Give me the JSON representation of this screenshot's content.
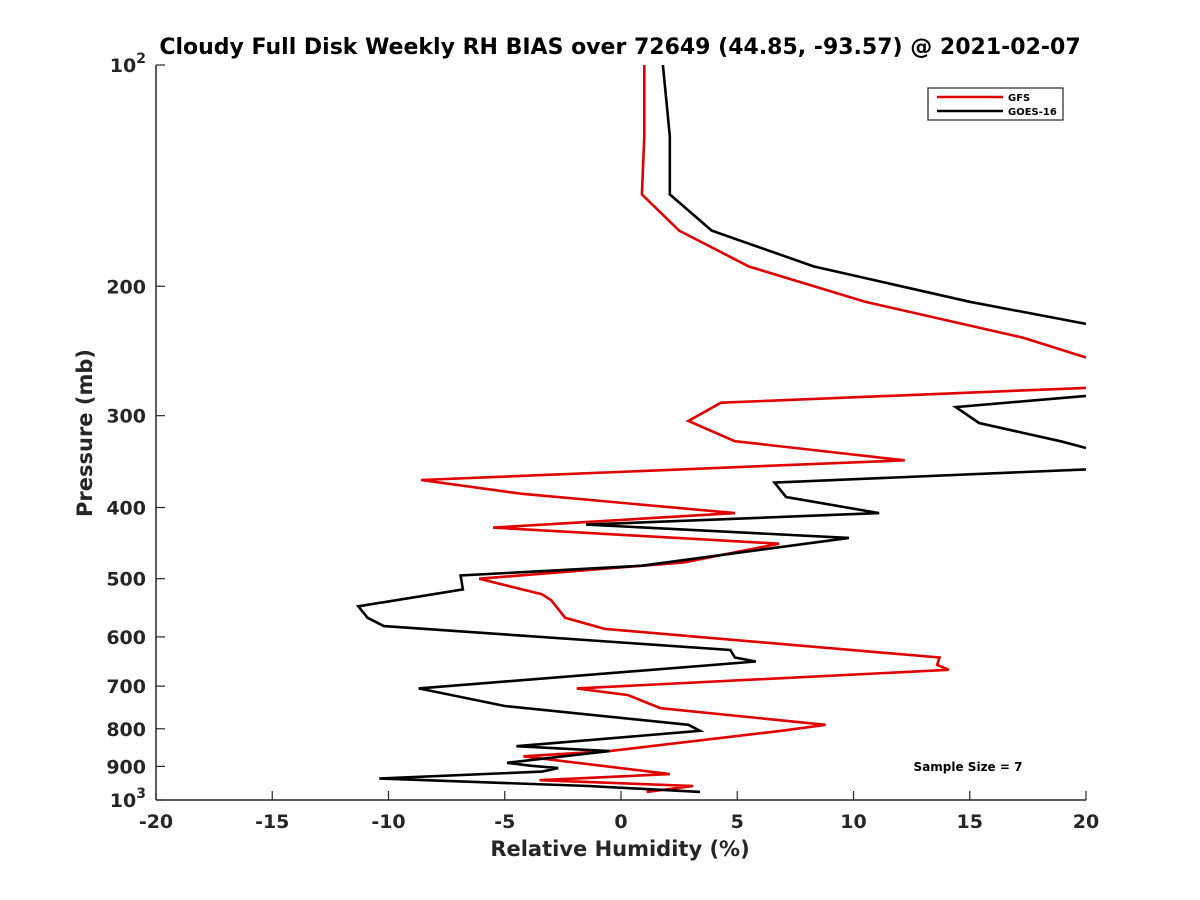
{
  "chart_data": {
    "type": "line",
    "title": "Cloudy Full Disk Weekly RH BIAS over 72649 (44.85, -93.57) @ 2021-02-07",
    "xlabel": "Relative Humidity (%)",
    "ylabel": "Pressure (mb)",
    "xlim": [
      -20,
      20
    ],
    "ylim": [
      100,
      1000
    ],
    "y_scale": "log",
    "y_reversed": true,
    "grid": false,
    "legend_position": "top-right",
    "x_ticks": [
      {
        "value": -20,
        "label": "-20"
      },
      {
        "value": -15,
        "label": "-15"
      },
      {
        "value": -10,
        "label": "-10"
      },
      {
        "value": -5,
        "label": "-5"
      },
      {
        "value": 0,
        "label": "0"
      },
      {
        "value": 5,
        "label": "5"
      },
      {
        "value": 10,
        "label": "10"
      },
      {
        "value": 15,
        "label": "15"
      },
      {
        "value": 20,
        "label": "20"
      }
    ],
    "y_ticks": [
      {
        "value": 100,
        "base": "10",
        "exp": "2"
      },
      {
        "value": 200,
        "label": "200"
      },
      {
        "value": 300,
        "label": "300"
      },
      {
        "value": 400,
        "label": "400"
      },
      {
        "value": 500,
        "label": "500"
      },
      {
        "value": 600,
        "label": "600"
      },
      {
        "value": 700,
        "label": "700"
      },
      {
        "value": 800,
        "label": "800"
      },
      {
        "value": 900,
        "label": "900"
      },
      {
        "value": 1000,
        "base": "10",
        "exp": "3"
      }
    ],
    "series": [
      {
        "name": "GFS",
        "color": "#e00000",
        "points": [
          [
            1.0,
            100
          ],
          [
            1.0,
            125
          ],
          [
            0.9,
            150
          ],
          [
            2.5,
            168
          ],
          [
            5.5,
            188
          ],
          [
            10.5,
            210
          ],
          [
            17.3,
            235
          ],
          [
            20.0,
            250
          ],
          [
            null,
            null
          ],
          [
            20.0,
            275
          ],
          [
            4.3,
            288
          ],
          [
            2.9,
            305
          ],
          [
            4.9,
            325
          ],
          [
            12.2,
            345
          ],
          [
            -8.6,
            367
          ],
          [
            -4.3,
            383
          ],
          [
            4.9,
            407
          ],
          [
            -5.5,
            426
          ],
          [
            6.8,
            448
          ],
          [
            2.7,
            475
          ],
          [
            -6.1,
            500
          ],
          [
            -3.4,
            525
          ],
          [
            -3.0,
            535
          ],
          [
            -2.4,
            565
          ],
          [
            -0.7,
            585
          ],
          [
            13.7,
            640
          ],
          [
            13.6,
            655
          ],
          [
            14.1,
            665
          ],
          [
            -1.9,
            705
          ],
          [
            0.3,
            720
          ],
          [
            1.7,
            750
          ],
          [
            8.8,
            790
          ],
          [
            6.9,
            805
          ],
          [
            -0.5,
            858
          ],
          [
            -4.2,
            872
          ],
          [
            2.1,
            922
          ],
          [
            -3.5,
            940
          ],
          [
            3.1,
            957
          ],
          [
            1.1,
            975
          ]
        ]
      },
      {
        "name": "GOES-16",
        "color": "#000000",
        "points": [
          [
            1.8,
            100
          ],
          [
            2.1,
            125
          ],
          [
            2.1,
            150
          ],
          [
            3.9,
            168
          ],
          [
            8.3,
            188
          ],
          [
            15.0,
            210
          ],
          [
            20.0,
            225
          ],
          [
            null,
            null
          ],
          [
            20.0,
            282
          ],
          [
            14.4,
            292
          ],
          [
            15.4,
            307
          ],
          [
            18.9,
            325
          ],
          [
            20.0,
            332
          ],
          [
            null,
            null
          ],
          [
            20.0,
            355
          ],
          [
            6.6,
            370
          ],
          [
            7.1,
            387
          ],
          [
            11.1,
            407
          ],
          [
            -1.5,
            422
          ],
          [
            9.8,
            440
          ],
          [
            0.9,
            480
          ],
          [
            -6.9,
            495
          ],
          [
            -6.8,
            517
          ],
          [
            -11.3,
            545
          ],
          [
            -10.9,
            565
          ],
          [
            -10.2,
            580
          ],
          [
            4.7,
            625
          ],
          [
            4.9,
            640
          ],
          [
            5.8,
            648
          ],
          [
            -8.7,
            705
          ],
          [
            -5.0,
            745
          ],
          [
            2.9,
            790
          ],
          [
            3.4,
            805
          ],
          [
            -4.5,
            845
          ],
          [
            -0.5,
            858
          ],
          [
            -4.9,
            890
          ],
          [
            -3.9,
            898
          ],
          [
            -2.7,
            905
          ],
          [
            -3.4,
            915
          ],
          [
            -10.4,
            935
          ],
          [
            -1.4,
            957
          ],
          [
            3.4,
            975
          ]
        ]
      }
    ],
    "annotations": [
      {
        "text": "Sample Size = 7"
      }
    ]
  }
}
